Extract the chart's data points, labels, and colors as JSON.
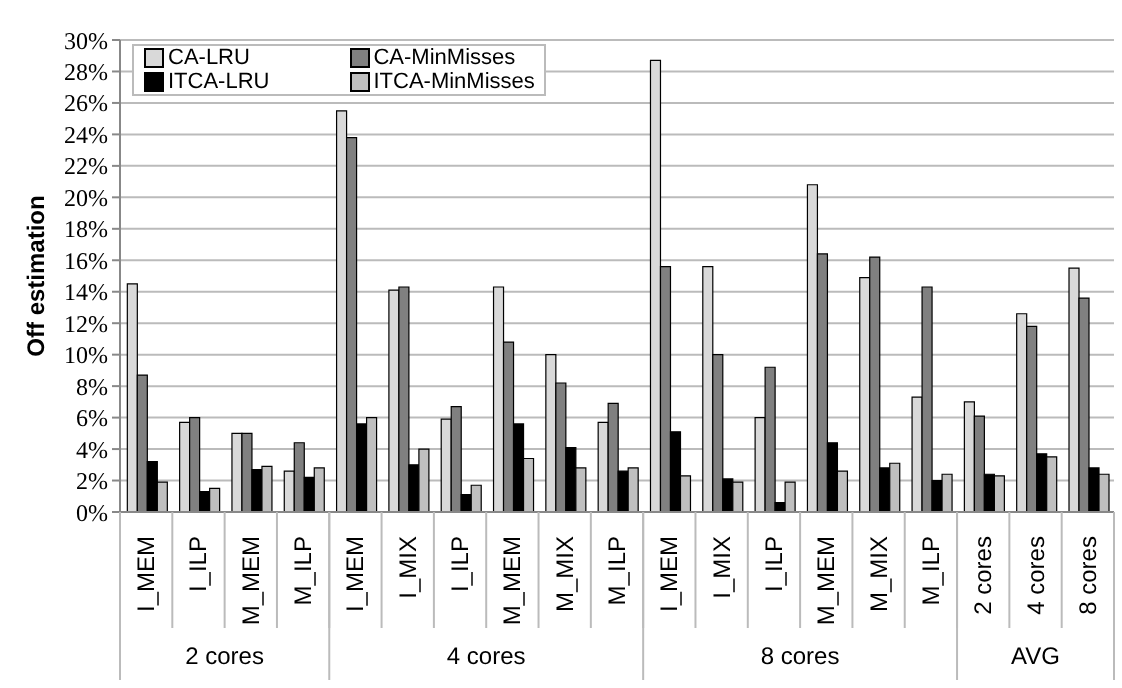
{
  "chart_data": {
    "type": "bar",
    "ylabel": "Off estimation",
    "categories": [
      "I_MEM",
      "I_ILP",
      "M_MEM",
      "M_ILP",
      "I_MEM",
      "I_MIX",
      "I_ILP",
      "M_MEM",
      "M_MIX",
      "M_ILP",
      "I_MEM",
      "I_MIX",
      "I_ILP",
      "M_MEM",
      "M_MIX",
      "M_ILP",
      "2 cores",
      "4 cores",
      "8 cores"
    ],
    "series": [
      {
        "name": "CA-LRU",
        "color": "#d9d9d9",
        "values": [
          14.5,
          5.7,
          5.0,
          2.6,
          25.5,
          14.1,
          5.9,
          14.3,
          10.0,
          5.7,
          28.7,
          15.6,
          6.0,
          20.8,
          14.9,
          7.3,
          7.0,
          12.6,
          15.5
        ]
      },
      {
        "name": "CA-MinMisses",
        "color": "#808080",
        "values": [
          8.7,
          6.0,
          5.0,
          4.4,
          23.8,
          14.3,
          6.7,
          10.8,
          8.2,
          6.9,
          15.6,
          10.0,
          9.2,
          16.4,
          16.2,
          14.3,
          6.1,
          11.8,
          13.6
        ]
      },
      {
        "name": "ITCA-LRU",
        "color": "#000000",
        "values": [
          3.2,
          1.3,
          2.7,
          2.2,
          5.6,
          3.0,
          1.1,
          5.6,
          4.1,
          2.6,
          5.1,
          2.1,
          0.6,
          4.4,
          2.8,
          2.0,
          2.4,
          3.7,
          2.8
        ]
      },
      {
        "name": "ITCA-MinMisses",
        "color": "#bfbfbf",
        "values": [
          1.9,
          1.5,
          2.9,
          2.8,
          6.0,
          4.0,
          1.7,
          3.4,
          2.8,
          2.8,
          2.3,
          1.9,
          1.9,
          2.6,
          3.1,
          2.4,
          2.3,
          3.5,
          2.4
        ]
      }
    ],
    "ylim": [
      0,
      30
    ],
    "yticks": [
      {
        "value": 0,
        "label": "0%"
      },
      {
        "value": 2,
        "label": "2%"
      },
      {
        "value": 4,
        "label": "4%"
      },
      {
        "value": 6,
        "label": "6%"
      },
      {
        "value": 8,
        "label": "8%"
      },
      {
        "value": 10,
        "label": "10%"
      },
      {
        "value": 12,
        "label": "12%"
      },
      {
        "value": 14,
        "label": "14%"
      },
      {
        "value": 16,
        "label": "16%"
      },
      {
        "value": 18,
        "label": "18%"
      },
      {
        "value": 20,
        "label": "20%"
      },
      {
        "value": 22,
        "label": "22%"
      },
      {
        "value": 24,
        "label": "24%"
      },
      {
        "value": 26,
        "label": "26%"
      },
      {
        "value": 28,
        "label": "28%"
      },
      {
        "value": 30,
        "label": "30%"
      }
    ],
    "grid": "y",
    "legend": "top left",
    "annotations": [
      "2 cores",
      "4 cores",
      "8 cores",
      "AVG"
    ]
  }
}
